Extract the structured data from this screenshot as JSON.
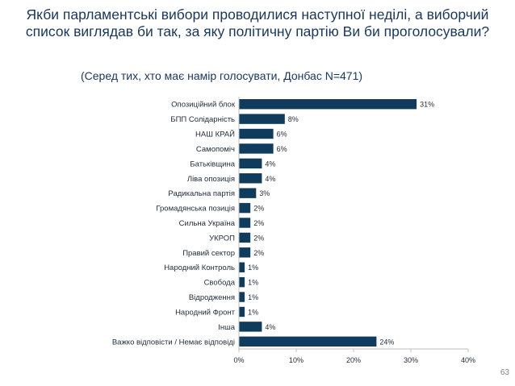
{
  "slide": {
    "title": "Якби парламентські вибори проводилися наступної неділі, а виборчий список виглядав би так, за яку політичну партію Ви би проголосували?",
    "subtitle": "(Серед тих, хто має намір голосувати, Донбас N=471)",
    "page_number": "63"
  },
  "colors": {
    "bar": "#0f3b5c",
    "title": "#17375e"
  },
  "chart_data": {
    "type": "bar",
    "orientation": "horizontal",
    "categories": [
      "Опозиційний блок",
      "БПП Солідарність",
      "НАШ КРАЙ",
      "Самопоміч",
      "Батьківщина",
      "Ліва опозиція",
      "Радикальна партія",
      "Громадянська позиція",
      "Сильна Україна",
      "УКРОП",
      "Правий сектор",
      "Народний Контроль",
      "Свобода",
      "Відродження",
      "Народний Фронт",
      "Інша",
      "Важко відповісти / Немає відповіді"
    ],
    "values": [
      31,
      8,
      6,
      6,
      4,
      4,
      3,
      2,
      2,
      2,
      2,
      1,
      1,
      1,
      1,
      4,
      24
    ],
    "data_labels": [
      "31%",
      "8%",
      "6%",
      "6%",
      "4%",
      "4%",
      "3%",
      "2%",
      "2%",
      "2%",
      "2%",
      "1%",
      "1%",
      "1%",
      "1%",
      "4%",
      "24%"
    ],
    "xlim": [
      0,
      40
    ],
    "xticks": [
      0,
      10,
      20,
      30,
      40
    ],
    "xtick_labels": [
      "0%",
      "10%",
      "20%",
      "30%",
      "40%"
    ],
    "grid": false,
    "legend": "none"
  }
}
